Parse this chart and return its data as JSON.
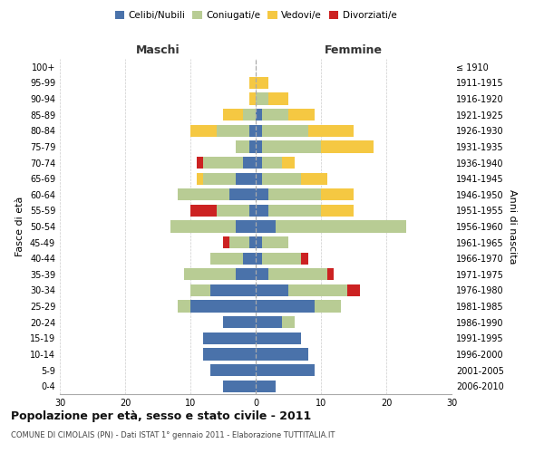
{
  "age_groups": [
    "0-4",
    "5-9",
    "10-14",
    "15-19",
    "20-24",
    "25-29",
    "30-34",
    "35-39",
    "40-44",
    "45-49",
    "50-54",
    "55-59",
    "60-64",
    "65-69",
    "70-74",
    "75-79",
    "80-84",
    "85-89",
    "90-94",
    "95-99",
    "100+"
  ],
  "birth_years": [
    "2006-2010",
    "2001-2005",
    "1996-2000",
    "1991-1995",
    "1986-1990",
    "1981-1985",
    "1976-1980",
    "1971-1975",
    "1966-1970",
    "1961-1965",
    "1956-1960",
    "1951-1955",
    "1946-1950",
    "1941-1945",
    "1936-1940",
    "1931-1935",
    "1926-1930",
    "1921-1925",
    "1916-1920",
    "1911-1915",
    "≤ 1910"
  ],
  "maschi": {
    "celibi": [
      5,
      7,
      8,
      8,
      5,
      10,
      7,
      3,
      2,
      1,
      3,
      1,
      4,
      3,
      2,
      1,
      1,
      0,
      0,
      0,
      0
    ],
    "coniugati": [
      0,
      0,
      0,
      0,
      0,
      2,
      3,
      8,
      5,
      3,
      10,
      5,
      8,
      5,
      6,
      2,
      5,
      2,
      0,
      0,
      0
    ],
    "vedovi": [
      0,
      0,
      0,
      0,
      0,
      0,
      0,
      0,
      0,
      0,
      0,
      0,
      0,
      1,
      0,
      0,
      4,
      3,
      1,
      1,
      0
    ],
    "divorziati": [
      0,
      0,
      0,
      0,
      0,
      0,
      0,
      0,
      0,
      1,
      0,
      4,
      0,
      0,
      1,
      0,
      0,
      0,
      0,
      0,
      0
    ]
  },
  "femmine": {
    "nubili": [
      3,
      9,
      8,
      7,
      4,
      9,
      5,
      2,
      1,
      1,
      3,
      2,
      2,
      1,
      1,
      1,
      1,
      1,
      0,
      0,
      0
    ],
    "coniugate": [
      0,
      0,
      0,
      0,
      2,
      4,
      9,
      9,
      6,
      4,
      20,
      8,
      8,
      6,
      3,
      9,
      7,
      4,
      2,
      0,
      0
    ],
    "vedove": [
      0,
      0,
      0,
      0,
      0,
      0,
      0,
      0,
      0,
      0,
      0,
      5,
      5,
      4,
      2,
      8,
      7,
      4,
      3,
      2,
      0
    ],
    "divorziate": [
      0,
      0,
      0,
      0,
      0,
      0,
      2,
      1,
      1,
      0,
      0,
      0,
      0,
      0,
      0,
      0,
      0,
      0,
      0,
      0,
      0
    ]
  },
  "colors": {
    "celibi_nubili": "#4a72aa",
    "coniugati": "#b8cc94",
    "vedovi": "#f5c842",
    "divorziati": "#cc2222"
  },
  "xlim": 30,
  "title": "Popolazione per età, sesso e stato civile - 2011",
  "subtitle": "COMUNE DI CIMOLAIS (PN) - Dati ISTAT 1° gennaio 2011 - Elaborazione TUTTITALIA.IT",
  "xlabel_left": "Maschi",
  "xlabel_right": "Femmine",
  "ylabel_left": "Fasce di età",
  "ylabel_right": "Anni di nascita"
}
